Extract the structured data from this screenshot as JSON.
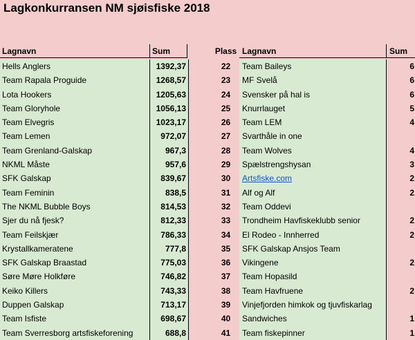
{
  "title": "Lagkonkurransen NM sjøisfiske 2018",
  "headers": {
    "lagnavn_left": "Lagnavn",
    "sum_left": "Sum",
    "plass": "Plass",
    "lagnavn_right": "Lagnavn",
    "sum_right": "Sum"
  },
  "left_rows": [
    {
      "name": "Hells Anglers",
      "sum": "1392,37"
    },
    {
      "name": "Team Rapala Proguide",
      "sum": "1268,57"
    },
    {
      "name": "Lota Hookers",
      "sum": "1205,63"
    },
    {
      "name": "Team Gloryhole",
      "sum": "1056,13"
    },
    {
      "name": "Team Elvegris",
      "sum": "1023,17"
    },
    {
      "name": "Team Lemen",
      "sum": "972,07"
    },
    {
      "name": "Team Grenland-Galskap",
      "sum": "967,3"
    },
    {
      "name": "NKML Måste",
      "sum": "957,6"
    },
    {
      "name": "SFK Galskap",
      "sum": "839,67"
    },
    {
      "name": "Team Feminin",
      "sum": "838,5"
    },
    {
      "name": "The NKML Bubble Boys",
      "sum": "814,53"
    },
    {
      "name": "Sjer du nå fjesk?",
      "sum": "812,33"
    },
    {
      "name": "Team Feilskjær",
      "sum": "786,33"
    },
    {
      "name": "Krystallkameratene",
      "sum": "777,8"
    },
    {
      "name": "SFK Galskap Braastad",
      "sum": "775,03"
    },
    {
      "name": "Søre Møre Holkføre",
      "sum": "746,82"
    },
    {
      "name": "Keiko Killers",
      "sum": "743,33"
    },
    {
      "name": "Duppen Galskap",
      "sum": "713,17"
    },
    {
      "name": "Team Isfiste",
      "sum": "698,67"
    },
    {
      "name": "Team Sverresborg artsfiskeforening",
      "sum": "688,8"
    }
  ],
  "right_rows": [
    {
      "plass": "22",
      "name": "Team Baileys",
      "sum": "6"
    },
    {
      "plass": "23",
      "name": "MF Svelå",
      "sum": "6"
    },
    {
      "plass": "24",
      "name": "Svensker på hal is",
      "sum": "6"
    },
    {
      "plass": "25",
      "name": "Knurrlauget",
      "sum": "5"
    },
    {
      "plass": "26",
      "name": "Team LEM",
      "sum": "4"
    },
    {
      "plass": "27",
      "name": "Svarthåle in one",
      "sum": ""
    },
    {
      "plass": "28",
      "name": "Team Wolves",
      "sum": "4"
    },
    {
      "plass": "29",
      "name": "Spælstrengshysan",
      "sum": "3"
    },
    {
      "plass": "30",
      "name": "Artsfiske.com",
      "sum": "2",
      "link": true
    },
    {
      "plass": "31",
      "name": "Alf og Alf",
      "sum": "2"
    },
    {
      "plass": "32",
      "name": "Team Oddevi",
      "sum": ""
    },
    {
      "plass": "33",
      "name": "Trondheim Havfiskeklubb senior",
      "sum": "2"
    },
    {
      "plass": "34",
      "name": "El Rodeo - Innherred",
      "sum": "2"
    },
    {
      "plass": "35",
      "name": "SFK Galskap Ansjos Team",
      "sum": ""
    },
    {
      "plass": "36",
      "name": "Vikingene",
      "sum": "2"
    },
    {
      "plass": "37",
      "name": "Team Hopasild",
      "sum": ""
    },
    {
      "plass": "38",
      "name": "Team Havfruene",
      "sum": "2"
    },
    {
      "plass": "39",
      "name": "Vinjefjorden himkok og tjuvfiskarlag",
      "sum": ""
    },
    {
      "plass": "40",
      "name": "Sandwiches",
      "sum": "1"
    },
    {
      "plass": "41",
      "name": "Team fiskepinner",
      "sum": "1"
    }
  ]
}
